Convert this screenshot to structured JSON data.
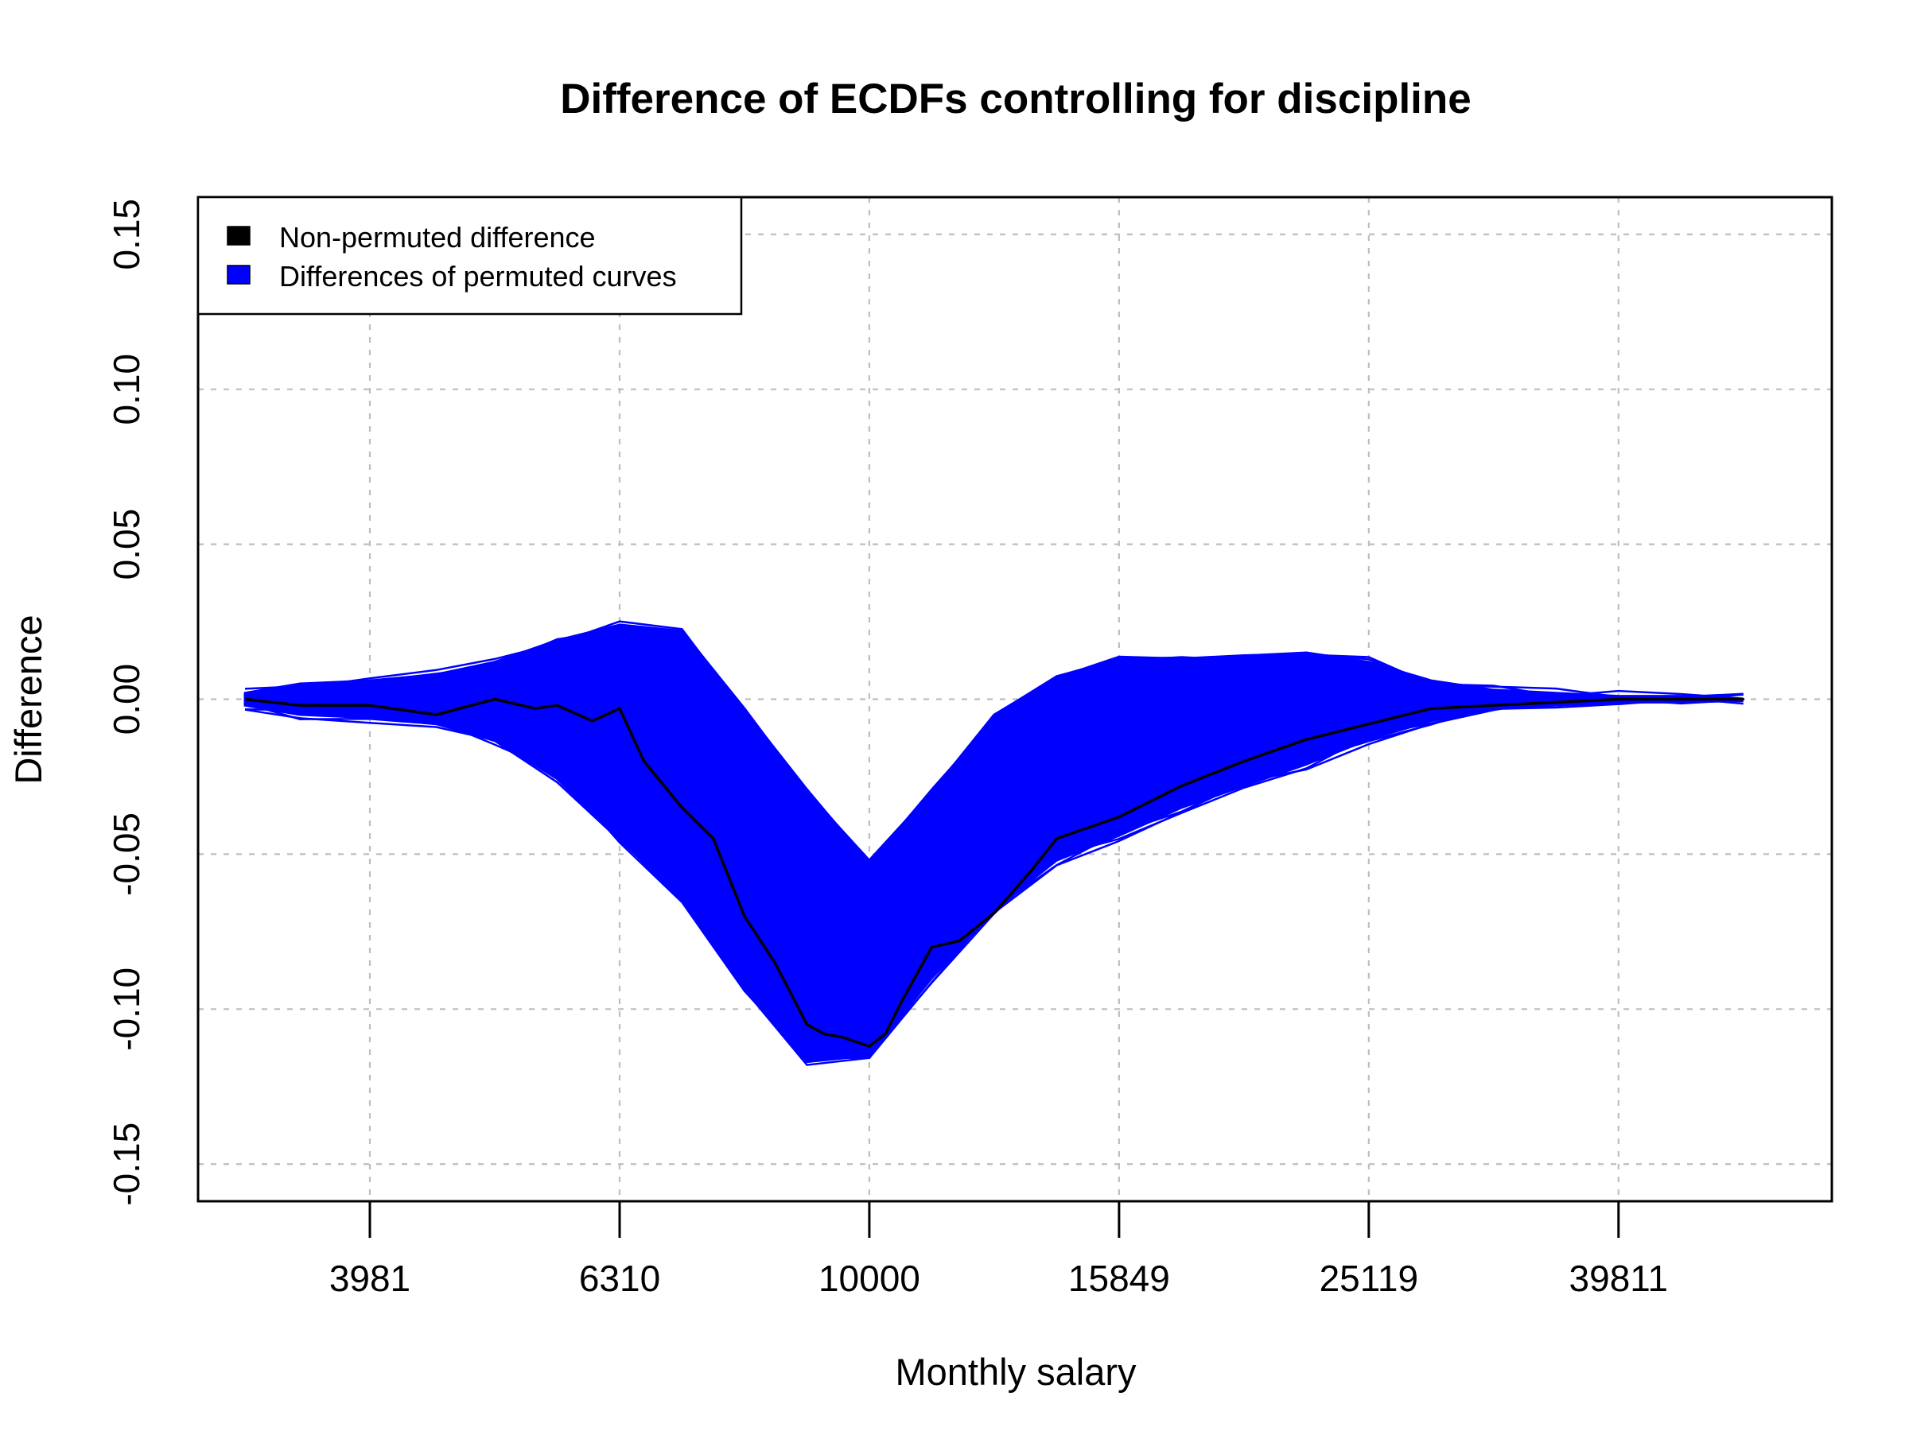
{
  "chart_data": {
    "type": "line",
    "title": "Difference of ECDFs controlling for discipline",
    "xlabel": "Monthly salary",
    "ylabel": "Difference",
    "x_scale": "log10",
    "xlim": [
      2900,
      59000
    ],
    "ylim": [
      -0.162,
      0.162
    ],
    "x_ticks": [
      3981,
      6310,
      10000,
      15849,
      25119,
      39811
    ],
    "y_ticks": [
      -0.15,
      -0.1,
      -0.05,
      0.0,
      0.05,
      0.1,
      0.15
    ],
    "y_tick_labels": [
      "-0.15",
      "-0.10",
      "-0.05",
      "0.00",
      "0.05",
      "0.10",
      "0.15"
    ],
    "grid": true,
    "legend": {
      "position": "top-left",
      "entries": [
        {
          "label": "Non-permuted difference",
          "color": "#000000"
        },
        {
          "label": "Differences of permuted curves",
          "color": "#0000ff"
        }
      ]
    },
    "series": [
      {
        "name": "Non-permuted difference",
        "color": "#000000",
        "x": [
          3162,
          3500,
          3981,
          4500,
          5012,
          5400,
          5623,
          6000,
          6310,
          6600,
          7079,
          7500,
          7943,
          8400,
          8913,
          9200,
          9500,
          10000,
          10300,
          10600,
          11220,
          11800,
          12589,
          13500,
          14125,
          15849,
          17783,
          19953,
          22387,
          25119,
          28184,
          31623,
          35481,
          39811,
          44668,
          50119
        ],
        "y": [
          0.0,
          -0.002,
          -0.002,
          -0.005,
          0.0,
          -0.003,
          -0.002,
          -0.007,
          -0.003,
          -0.02,
          -0.035,
          -0.045,
          -0.07,
          -0.085,
          -0.105,
          -0.108,
          -0.109,
          -0.112,
          -0.108,
          -0.098,
          -0.08,
          -0.078,
          -0.069,
          -0.055,
          -0.045,
          -0.038,
          -0.028,
          -0.02,
          -0.013,
          -0.008,
          -0.003,
          -0.002,
          -0.001,
          0.0,
          0.0,
          0.0
        ]
      },
      {
        "name": "Differences of permuted curves",
        "color": "#0000ff",
        "x": [
          3162,
          3500,
          3981,
          4500,
          5012,
          5623,
          6310,
          7079,
          7943,
          8913,
          10000,
          11220,
          12589,
          14125,
          15849,
          17783,
          19953,
          22387,
          25119,
          28184,
          31623,
          35481,
          39811,
          44668,
          50119
        ],
        "upper": [
          0.002,
          0.005,
          0.006,
          0.008,
          0.012,
          0.019,
          0.024,
          0.022,
          -0.003,
          -0.03,
          -0.052,
          -0.03,
          -0.005,
          0.007,
          0.013,
          0.013,
          0.014,
          0.015,
          0.012,
          0.006,
          0.003,
          0.002,
          0.001,
          0.001,
          0.0
        ],
        "lower": [
          -0.002,
          -0.005,
          -0.006,
          -0.008,
          -0.013,
          -0.025,
          -0.045,
          -0.065,
          -0.093,
          -0.117,
          -0.115,
          -0.09,
          -0.068,
          -0.052,
          -0.044,
          -0.035,
          -0.028,
          -0.021,
          -0.013,
          -0.007,
          -0.003,
          -0.002,
          -0.001,
          -0.001,
          0.0
        ]
      }
    ]
  }
}
